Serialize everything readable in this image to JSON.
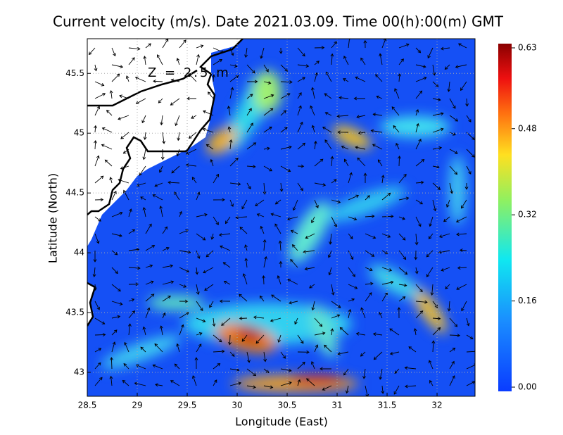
{
  "chart_data": {
    "type": "heatmap",
    "title": "Current velocity (m/s). Date 2021.03.09. Time 00(h):00(m) GMT",
    "annotation": "Z = 2.5 m",
    "x_label": "Longitude (East)",
    "y_label": "Latitude (North)",
    "xlim": [
      28.5,
      32.38
    ],
    "xticks": [
      28.5,
      29,
      29.5,
      30,
      30.5,
      31,
      31.5,
      32
    ],
    "ylim": [
      42.8,
      45.79
    ],
    "yticks": [
      43,
      43.5,
      44,
      44.5,
      45,
      45.5
    ],
    "grid": true,
    "colorbar": {
      "lim": [
        0,
        0.63
      ],
      "ticks": [
        {
          "value": 0,
          "label": "0.00"
        },
        0.16,
        0.32,
        0.48,
        0.63
      ]
    }
  }
}
